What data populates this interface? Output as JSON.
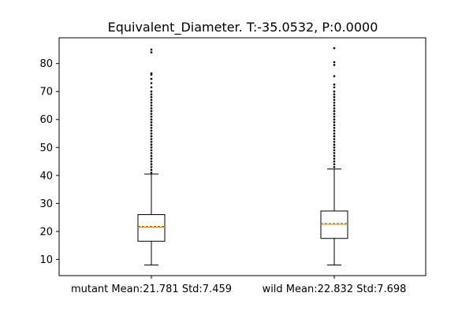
{
  "chart_data": {
    "type": "box",
    "title": "Equivalent_Diameter. T:-35.0532, P:0.0000",
    "xlabel": "",
    "ylabel": "",
    "ylim": [
      4.2,
      89.2
    ],
    "yticks": [
      10,
      20,
      30,
      40,
      50,
      60,
      70,
      80
    ],
    "grid": false,
    "categories": [
      "mutant Mean:21.781 Std:7.459",
      "wild Mean:22.832 Std:7.698"
    ],
    "series": [
      {
        "whisker_low": 8.0,
        "q1": 16.5,
        "median": 21.5,
        "mean": 21.781,
        "q3": 26.0,
        "whisker_high": 40.5,
        "outliers": [
          41,
          42,
          43,
          44,
          45,
          46,
          47,
          48,
          49,
          50,
          51,
          52,
          53,
          54,
          55,
          56,
          57,
          58,
          59,
          60,
          61,
          62,
          63,
          64,
          65,
          66,
          67,
          68,
          69,
          70,
          71.5,
          73,
          74.5,
          76,
          76.5,
          84,
          85
        ]
      },
      {
        "whisker_low": 8.0,
        "q1": 17.5,
        "median": 22.5,
        "mean": 22.832,
        "q3": 27.3,
        "whisker_high": 42.3,
        "outliers": [
          43,
          44,
          45,
          46,
          47,
          48,
          49,
          50,
          51,
          52,
          53,
          54,
          55,
          56,
          57,
          58,
          59,
          60,
          61,
          62,
          63,
          64,
          65,
          66,
          67,
          68,
          69,
          70,
          71.5,
          72.5,
          75.5,
          79.5,
          80.5,
          85.5
        ]
      }
    ],
    "colors": {
      "median": "#ff7f0e",
      "mean": "#2ca02c",
      "box": "#000000"
    }
  }
}
